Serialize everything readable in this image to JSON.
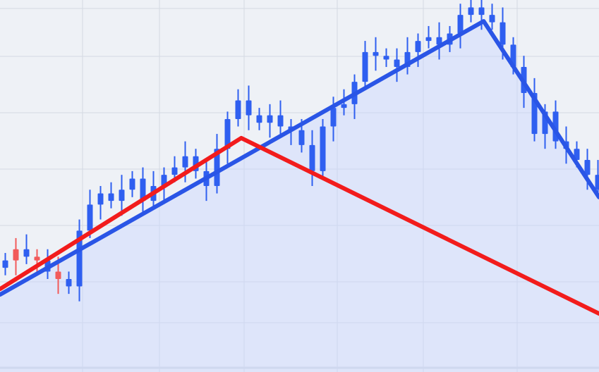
{
  "chart_data": {
    "type": "candlestick",
    "title": "",
    "xlabel": "",
    "ylabel": "",
    "grid": true,
    "ylim": [
      0,
      100
    ],
    "xlim": [
      -0.5,
      56.1
    ],
    "colors": {
      "background": "#eef1f6",
      "grid": "#d4d9e2",
      "candles": "#2f5ff0",
      "area": "#c9d8ff",
      "trend_blue": "#2a55e6",
      "trend_red": "#f21c1c"
    },
    "closes": [
      30,
      33,
      31,
      30,
      27,
      25,
      23,
      38,
      45,
      48,
      46,
      49,
      52,
      46,
      50,
      53,
      55,
      58,
      54,
      50,
      60,
      68,
      73,
      69,
      67,
      69,
      66,
      65,
      61,
      54,
      66,
      71,
      72,
      78,
      86,
      85,
      84,
      82,
      86,
      89,
      90,
      88,
      91,
      96,
      98,
      96,
      94,
      88,
      82,
      75,
      64,
      70,
      62,
      60,
      57,
      53,
      49
    ],
    "trend_lines": [
      {
        "color": "#2a55e6",
        "points": [
          [
            -0.5,
            20.8
          ],
          [
            45.2,
            94.3
          ],
          [
            56.1,
            47
          ]
        ]
      },
      {
        "color": "#f21c1c",
        "points": [
          [
            -0.5,
            22.3
          ],
          [
            22.3,
            62.9
          ],
          [
            56.1,
            15.7
          ]
        ]
      }
    ]
  }
}
